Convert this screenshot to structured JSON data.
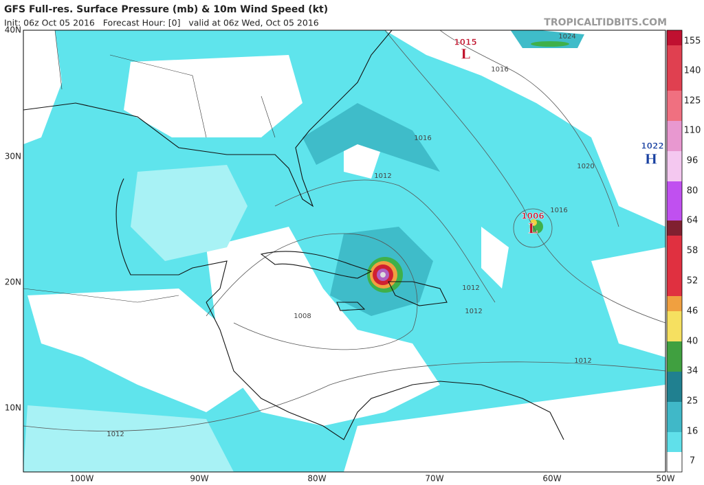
{
  "header": {
    "title": "GFS Full-res. Surface Pressure (mb) & 10m Wind Speed (kt)",
    "subtitle": "Init: 06z Oct 05 2016   Forecast Hour: [0]   valid at 06z Wed, Oct 05 2016",
    "site": "TROPICALTIDBITS.COM"
  },
  "map": {
    "lat_labels": [
      "40N",
      "30N",
      "20N",
      "10N"
    ],
    "lon_labels": [
      "100W",
      "90W",
      "80W",
      "70W",
      "60W",
      "50W"
    ],
    "pressure_centers": [
      {
        "value": "1015",
        "symbol": "L"
      },
      {
        "value": "1006",
        "symbol": "L"
      },
      {
        "value": "1022",
        "symbol": "H"
      }
    ],
    "isobar_labels": [
      "1024",
      "1016",
      "1016",
      "1012",
      "1020",
      "1016",
      "1012",
      "1012",
      "1008",
      "1012",
      "1012"
    ]
  },
  "colorbar": {
    "labels": [
      "155",
      "140",
      "125",
      "110",
      "96",
      "80",
      "64",
      "58",
      "52",
      "46",
      "40",
      "34",
      "25",
      "16",
      "7"
    ]
  }
}
